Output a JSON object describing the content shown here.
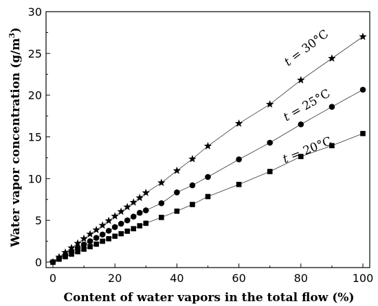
{
  "chart_data": {
    "type": "scatter",
    "title": "",
    "xlabel": "Content of water vapors in the total flow (%)",
    "ylabel_main": "Water vapor concentration (g/m",
    "ylabel_sup": "3",
    "ylabel_tail": ")",
    "xlim": [
      0,
      100
    ],
    "ylim": [
      0,
      30
    ],
    "xticks": [
      0,
      20,
      40,
      60,
      80,
      100
    ],
    "yticks": [
      0,
      5,
      10,
      15,
      20,
      25,
      30
    ],
    "grid": false,
    "series": [
      {
        "label": "t = 20°C",
        "marker": "square",
        "x": [
          0,
          2,
          4,
          6,
          8,
          10,
          12,
          14,
          16,
          18,
          20,
          22,
          24,
          26,
          28,
          30,
          35,
          40,
          45,
          50,
          60,
          70,
          80,
          90,
          100
        ],
        "y": [
          0,
          0.35,
          0.65,
          0.95,
          1.25,
          1.55,
          1.85,
          2.15,
          2.5,
          2.8,
          3.1,
          3.4,
          3.7,
          4.0,
          4.35,
          4.65,
          5.35,
          6.1,
          6.9,
          7.85,
          9.3,
          10.85,
          12.65,
          13.95,
          15.4
        ]
      },
      {
        "label": "t = 25°C",
        "marker": "circle",
        "x": [
          0,
          2,
          4,
          6,
          8,
          10,
          12,
          14,
          16,
          18,
          20,
          22,
          24,
          26,
          28,
          30,
          35,
          40,
          45,
          50,
          60,
          70,
          80,
          90,
          100
        ],
        "y": [
          0,
          0.45,
          0.85,
          1.3,
          1.7,
          2.1,
          2.5,
          2.9,
          3.3,
          3.75,
          4.2,
          4.6,
          5.0,
          5.45,
          5.9,
          6.2,
          7.05,
          8.35,
          9.2,
          10.2,
          12.3,
          14.3,
          16.5,
          18.6,
          20.65
        ]
      },
      {
        "label": "t = 30°C",
        "marker": "star",
        "x": [
          0,
          2,
          4,
          6,
          8,
          10,
          12,
          14,
          16,
          18,
          20,
          22,
          24,
          26,
          28,
          30,
          35,
          40,
          45,
          50,
          60,
          70,
          80,
          90,
          100
        ],
        "y": [
          0,
          0.6,
          1.15,
          1.7,
          2.25,
          2.8,
          3.35,
          3.85,
          4.4,
          4.95,
          5.5,
          6.05,
          6.6,
          7.15,
          7.7,
          8.3,
          9.5,
          10.95,
          12.35,
          13.9,
          16.6,
          18.9,
          21.8,
          24.4,
          27.0
        ]
      }
    ],
    "annotations": [
      {
        "text": "t = 30°C",
        "x": 82.5,
        "y": 25.3,
        "angle": -37
      },
      {
        "text": "t = 25°C",
        "x": 82.5,
        "y": 18.4,
        "angle": -30
      },
      {
        "text": "t = 20°C",
        "x": 82.5,
        "y": 13.0,
        "angle": -22
      }
    ]
  }
}
